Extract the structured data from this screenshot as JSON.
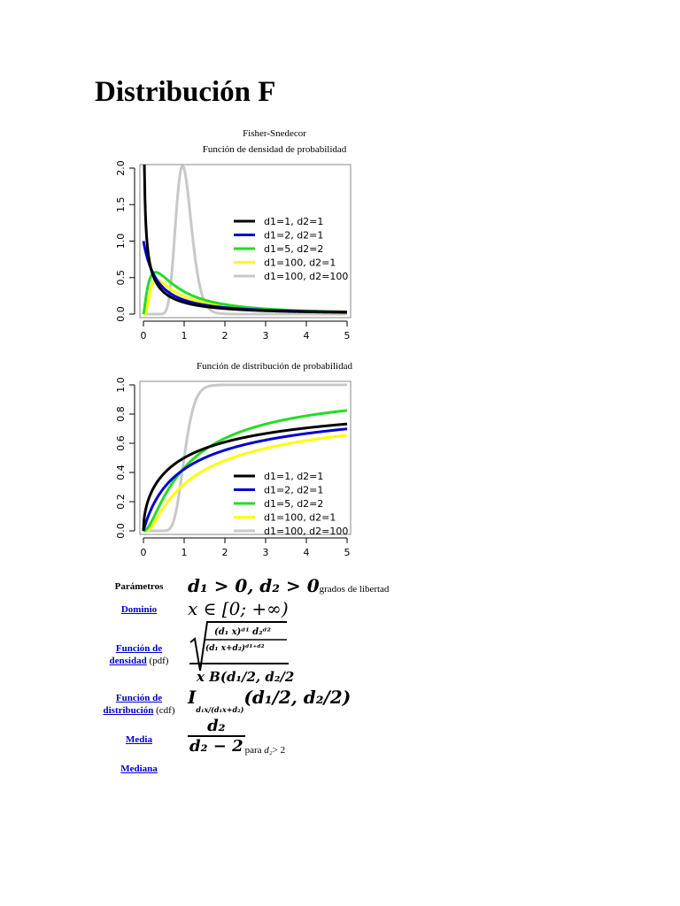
{
  "page": {
    "title": "Distribución F",
    "subtitle": "Fisher-Snedecor"
  },
  "charts": {
    "pdf_caption": "Función de densidad de probabilidad",
    "cdf_caption": "Función de distribución de probabilidad"
  },
  "chart_data": [
    {
      "type": "line",
      "title": "Función de densidad de probabilidad",
      "xlim": [
        0,
        5
      ],
      "ylim": [
        0,
        2.0
      ],
      "xticks": [
        "0",
        "1",
        "2",
        "3",
        "4",
        "5"
      ],
      "yticks": [
        "0.0",
        "0.5",
        "1.0",
        "1.5",
        "2.0"
      ],
      "legend_position": "right",
      "series": [
        {
          "name": "d1=1, d2=1",
          "color": "#000000",
          "d1": 1,
          "d2": 1
        },
        {
          "name": "d1=2, d2=1",
          "color": "#0000cc",
          "d1": 2,
          "d2": 1
        },
        {
          "name": "d1=5, d2=2",
          "color": "#22dd22",
          "d1": 5,
          "d2": 2
        },
        {
          "name": "d1=100, d2=1",
          "color": "#ffff00",
          "d1": 100,
          "d2": 1
        },
        {
          "name": "d1=100, d2=100",
          "color": "#c8c8c8",
          "d1": 100,
          "d2": 100
        }
      ]
    },
    {
      "type": "line",
      "title": "Función de distribución de probabilidad",
      "xlim": [
        0,
        5
      ],
      "ylim": [
        0,
        1.0
      ],
      "xticks": [
        "0",
        "1",
        "2",
        "3",
        "4",
        "5"
      ],
      "yticks": [
        "0.0",
        "0.2",
        "0.4",
        "0.6",
        "0.8",
        "1.0"
      ],
      "legend_position": "bottom-right",
      "series": [
        {
          "name": "d1=1, d2=1",
          "color": "#000000",
          "d1": 1,
          "d2": 1
        },
        {
          "name": "d1=2, d2=1",
          "color": "#0000cc",
          "d1": 2,
          "d2": 1
        },
        {
          "name": "d1=5, d2=2",
          "color": "#22dd22",
          "d1": 5,
          "d2": 2
        },
        {
          "name": "d1=100, d2=1",
          "color": "#ffff00",
          "d1": 100,
          "d2": 1
        },
        {
          "name": "d1=100, d2=100",
          "color": "#c8c8c8",
          "d1": 100,
          "d2": 100
        }
      ]
    }
  ],
  "infobox": {
    "params_label": "Parámetros",
    "params_formula": "d₁ > 0,  d₂ > 0",
    "params_suffix": "grados de libertad",
    "domain_link": "Dominio",
    "domain_formula": "x ∈ [0; +∞)",
    "pdf_link1": "Función de",
    "pdf_link2": "densidad",
    "pdf_suffix": "(pdf)",
    "cdf_link1": "Función de",
    "cdf_link2": "distribución",
    "cdf_suffix": "(cdf)",
    "cdf_formula_I": "I",
    "cdf_formula_rest": "(d₁/2, d₂/2)",
    "mean_link": "Media",
    "mean_num": "d₂",
    "mean_den": "d₂ − 2",
    "mean_suffix_para": "para ",
    "mean_suffix_d2": "d₂",
    "mean_suffix_rest": "> 2",
    "median_link": "Mediana"
  },
  "colors": {
    "link": "#0000cc",
    "text": "#000000"
  }
}
